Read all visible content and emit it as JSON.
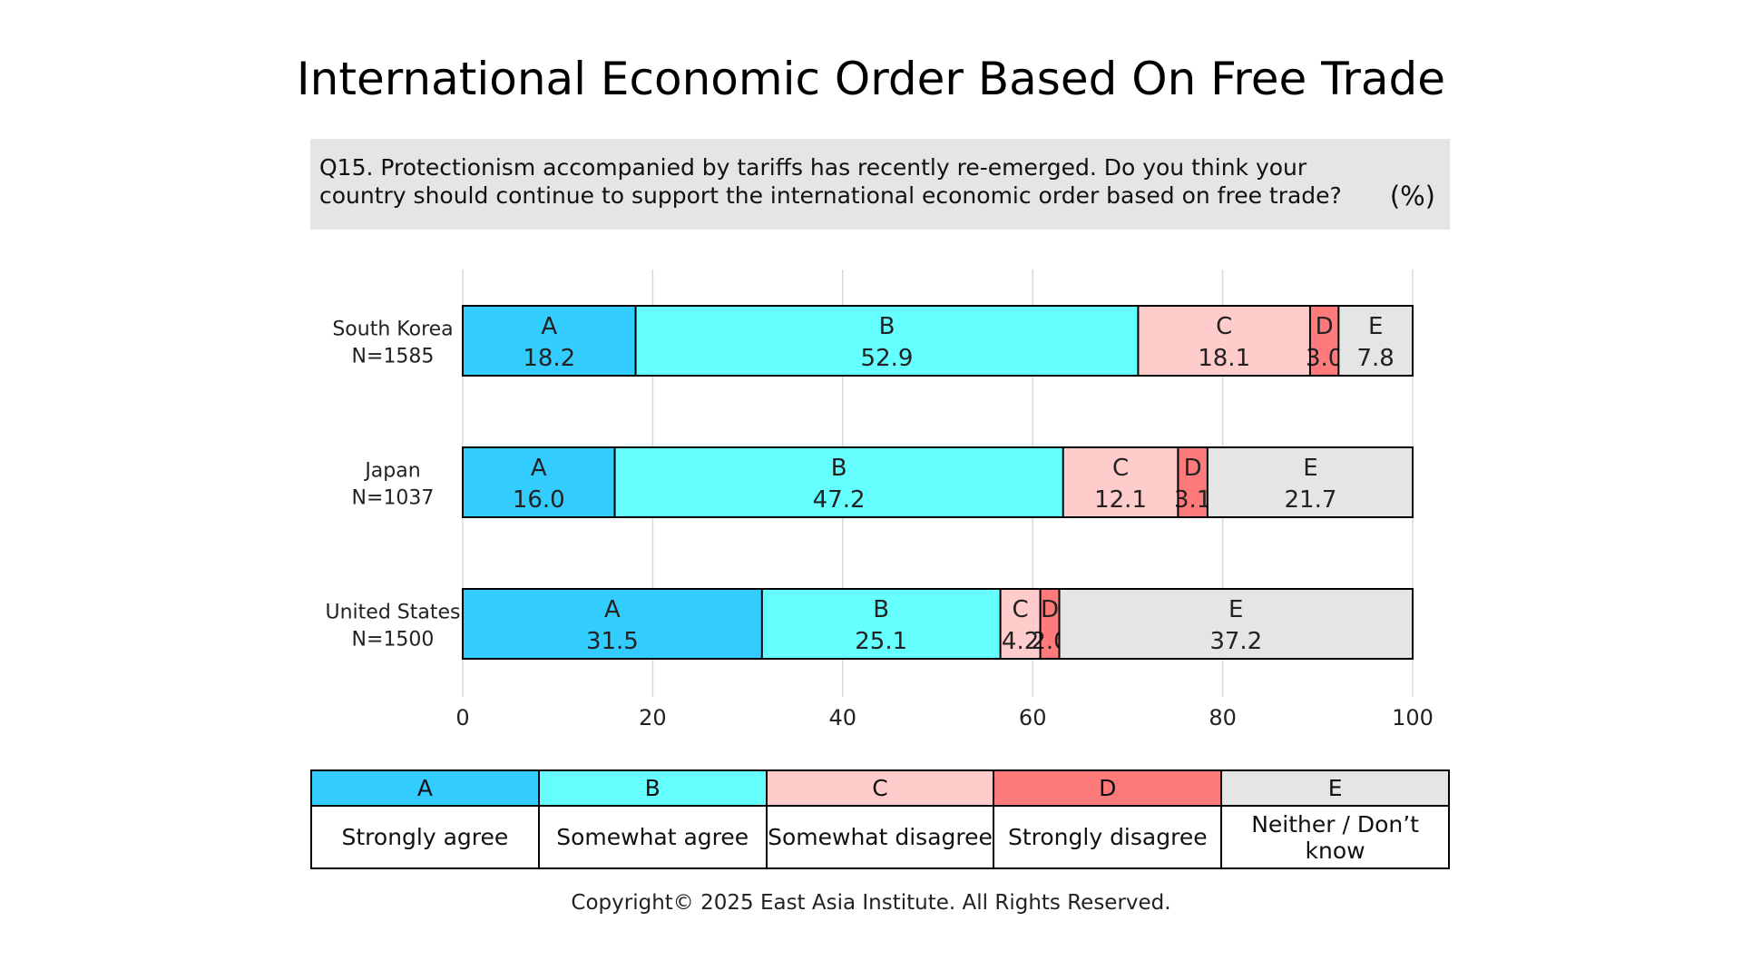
{
  "header": {
    "title": "International Economic Order Based On Free Trade",
    "question": "Q15. Protectionism accompanied by tariffs has recently re-emerged. Do you think your country should continue to support the international economic order based on free trade?",
    "unit": "(%)"
  },
  "legend": {
    "items": [
      {
        "code": "A",
        "label": "Strongly agree",
        "color": "#33ccff"
      },
      {
        "code": "B",
        "label": "Somewhat agree",
        "color": "#66ffff"
      },
      {
        "code": "C",
        "label": "Somewhat disagree",
        "color": "#ffcccc"
      },
      {
        "code": "D",
        "label": "Strongly disagree",
        "color": "#ff7a7a"
      },
      {
        "code": "E",
        "label": "Neither / Don’t know",
        "color": "#e5e5e5"
      }
    ]
  },
  "chart_data": {
    "type": "bar",
    "orientation": "horizontal",
    "stacked": true,
    "categories": [
      {
        "name": "South Korea",
        "n": "N=1585"
      },
      {
        "name": "Japan",
        "n": "N=1037"
      },
      {
        "name": "United States",
        "n": "N=1500"
      }
    ],
    "series": [
      {
        "name": "A",
        "values": [
          18.2,
          16.0,
          31.5
        ]
      },
      {
        "name": "B",
        "values": [
          52.9,
          47.2,
          25.1
        ]
      },
      {
        "name": "C",
        "values": [
          18.1,
          12.1,
          4.2
        ]
      },
      {
        "name": "D",
        "values": [
          3.0,
          3.1,
          2.0
        ]
      },
      {
        "name": "E",
        "values": [
          7.8,
          21.7,
          37.2
        ]
      }
    ],
    "xlim": [
      0,
      100
    ],
    "xticks": [
      0,
      20,
      40,
      60,
      80,
      100
    ],
    "grid": true
  },
  "footer": {
    "copyright": "Copyright© 2025 East Asia Institute. All Rights Reserved."
  }
}
